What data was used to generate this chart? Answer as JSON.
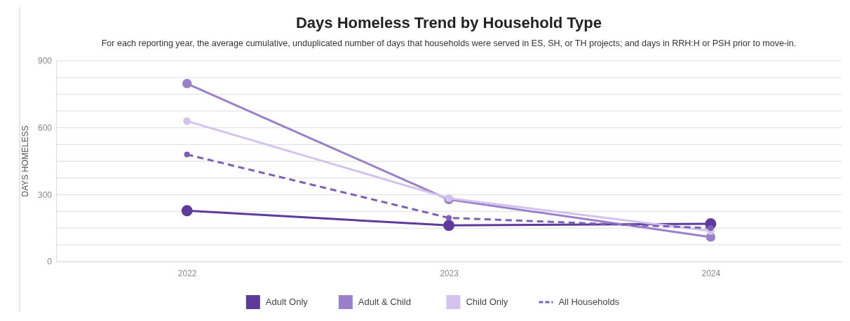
{
  "chart_data": {
    "type": "line",
    "title": "Days Homeless Trend by Household Type",
    "subtitle": "For each reporting year, the average cumulative, unduplicated number of days that households were served in ES, SH, or TH projects; and days in RRH:H or PSH prior to move-in.",
    "ylabel": "DAYS HOMELESS",
    "categories": [
      "2022",
      "2023",
      "2024"
    ],
    "series": [
      {
        "name": "Adult Only",
        "color": "#5e3a9b",
        "values": [
          228,
          162,
          169
        ]
      },
      {
        "name": "Adult & Child",
        "color": "#9a7fca",
        "values": [
          798,
          278,
          110
        ]
      },
      {
        "name": "Child Only",
        "color": "#d3c2ee",
        "values": [
          630,
          284,
          137
        ]
      },
      {
        "name": "All Households",
        "color": "#7e5fb8",
        "values": [
          480,
          196,
          150
        ],
        "line_style": "dashed"
      }
    ],
    "ylim": [
      0,
      900
    ],
    "yticks": [
      0,
      {
        "value": 75,
        "label": null
      },
      {
        "value": 150,
        "label": null
      },
      {
        "value": 225,
        "label": null
      },
      300,
      {
        "value": 375,
        "label": null
      },
      {
        "value": 450,
        "label": null
      },
      {
        "value": 525,
        "label": null
      },
      600,
      {
        "value": 675,
        "label": null
      },
      {
        "value": 750,
        "label": null
      },
      {
        "value": 825,
        "label": null
      },
      900
    ],
    "grid": "y",
    "legend": "bottom",
    "marker": "circle"
  }
}
